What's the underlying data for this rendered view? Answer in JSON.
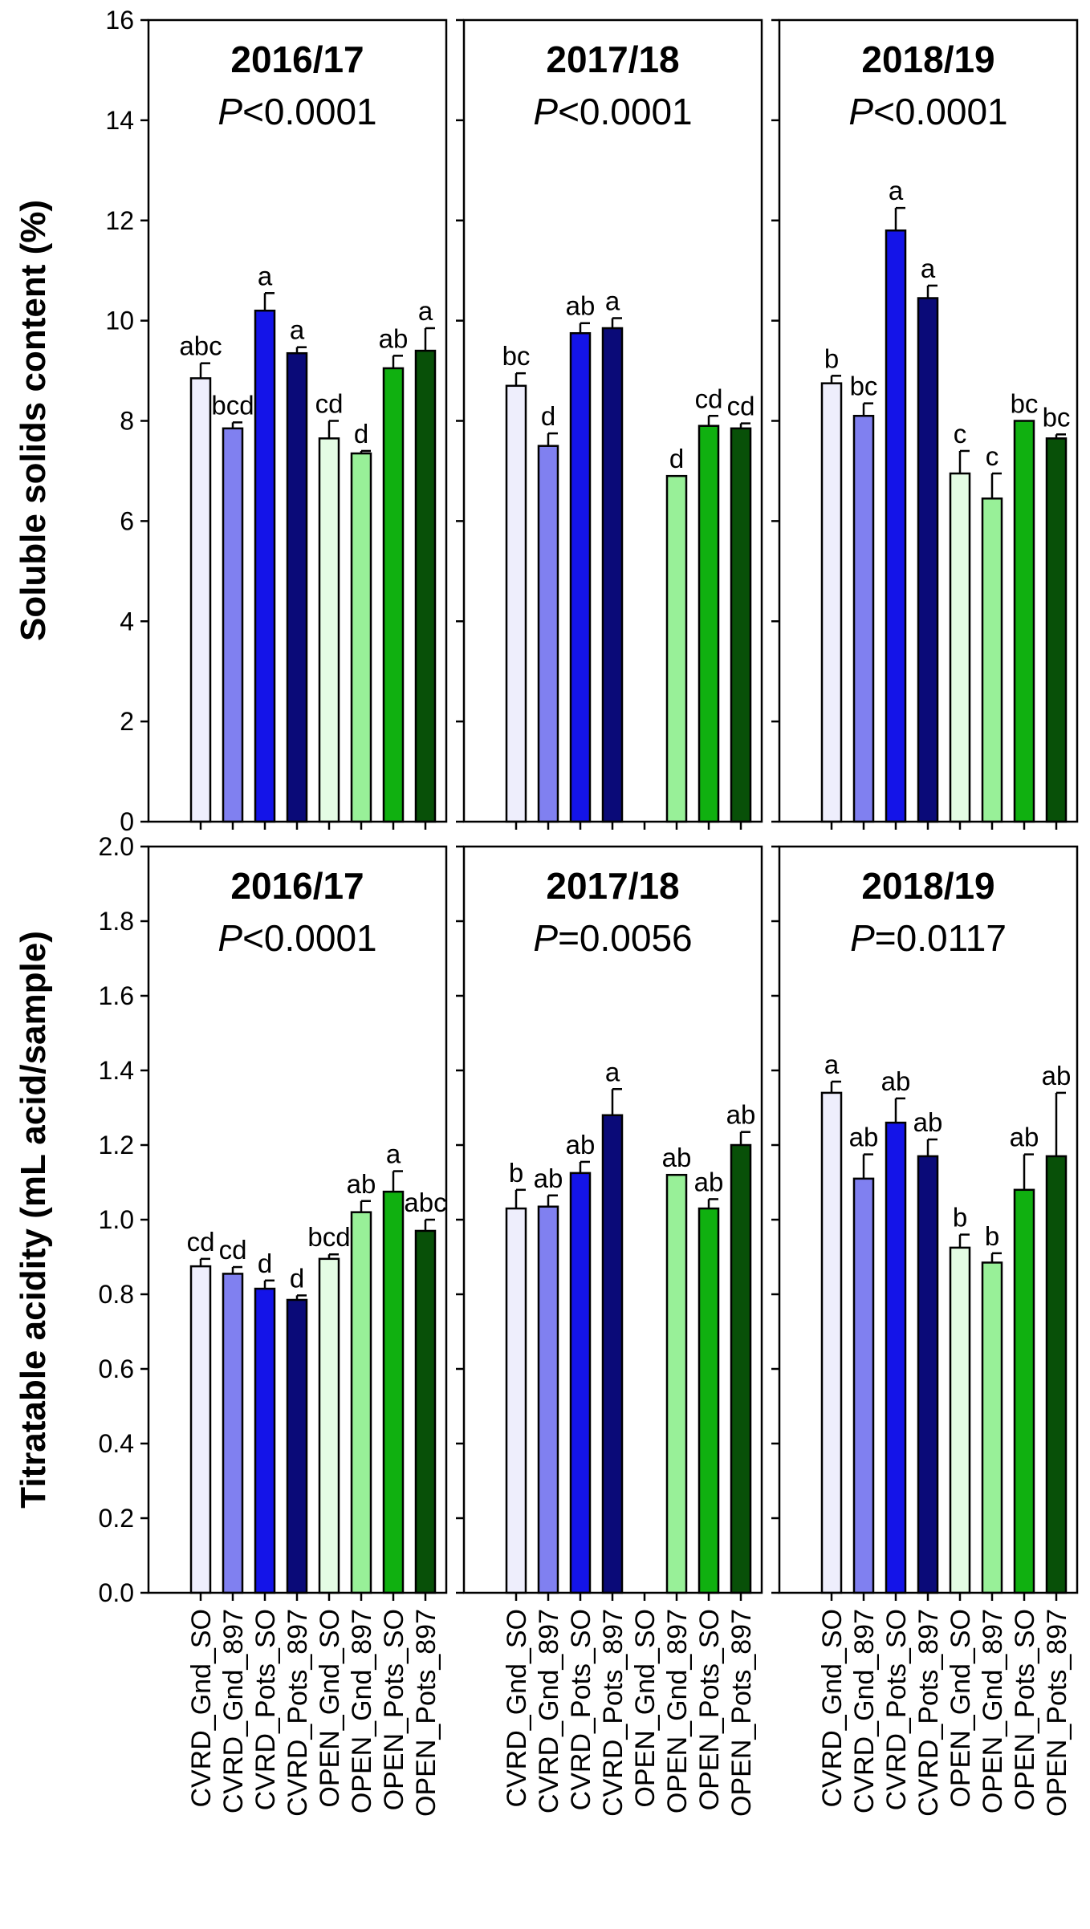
{
  "colors": {
    "CVRD_Gnd_SO": "#eeeefc",
    "CVRD_Gnd_897": "#8080f0",
    "CVRD_Pots_SO": "#1414e8",
    "CVRD_Pots_897": "#0a0a78",
    "OPEN_Gnd_SO": "#e4fce4",
    "OPEN_Gnd_897": "#98f098",
    "OPEN_Pots_SO": "#10b010",
    "OPEN_Pots_897": "#085008"
  },
  "chart_data": [
    {
      "type": "bar",
      "id": "ssc-2016",
      "row": "top",
      "title": "2016/17",
      "p_prefix": "P",
      "p_rest": "<0.0001",
      "ylabel": "Soluble solids content (%)",
      "ylim": [
        0,
        16
      ],
      "yticks": [
        "0",
        "2",
        "4",
        "6",
        "8",
        "10",
        "12",
        "14",
        "16"
      ],
      "categories": [
        "CVRD_Gnd_SO",
        "CVRD_Gnd_897",
        "CVRD_Pots_SO",
        "CVRD_Pots_897",
        "OPEN_Gnd_SO",
        "OPEN_Gnd_897",
        "OPEN_Pots_SO",
        "OPEN_Pots_897"
      ],
      "values": [
        8.85,
        7.85,
        10.2,
        9.35,
        7.65,
        7.35,
        9.05,
        9.4
      ],
      "errors": [
        0.3,
        0.12,
        0.35,
        0.12,
        0.35,
        0.05,
        0.25,
        0.45
      ],
      "letters": [
        "abc",
        "bcd",
        "a",
        "a",
        "cd",
        "d",
        "ab",
        "a"
      ]
    },
    {
      "type": "bar",
      "id": "ssc-2017",
      "row": "top",
      "title": "2017/18",
      "p_prefix": "P",
      "p_rest": "<0.0001",
      "ylim": [
        0,
        16
      ],
      "categories": [
        "CVRD_Gnd_SO",
        "CVRD_Gnd_897",
        "CVRD_Pots_SO",
        "CVRD_Pots_897",
        "OPEN_Gnd_SO",
        "OPEN_Gnd_897",
        "OPEN_Pots_SO",
        "OPEN_Pots_897"
      ],
      "values": [
        8.7,
        7.5,
        9.75,
        9.85,
        null,
        6.9,
        7.9,
        7.85
      ],
      "errors": [
        0.25,
        0.25,
        0.2,
        0.2,
        null,
        0.0,
        0.2,
        0.1
      ],
      "letters": [
        "bc",
        "d",
        "ab",
        "a",
        "",
        "d",
        "cd",
        "cd"
      ]
    },
    {
      "type": "bar",
      "id": "ssc-2018",
      "row": "top",
      "title": "2018/19",
      "p_prefix": "P",
      "p_rest": "<0.0001",
      "ylim": [
        0,
        16
      ],
      "categories": [
        "CVRD_Gnd_SO",
        "CVRD_Gnd_897",
        "CVRD_Pots_SO",
        "CVRD_Pots_897",
        "OPEN_Gnd_SO",
        "OPEN_Gnd_897",
        "OPEN_Pots_SO",
        "OPEN_Pots_897"
      ],
      "values": [
        8.75,
        8.1,
        11.8,
        10.45,
        6.95,
        6.45,
        8.0,
        7.65
      ],
      "errors": [
        0.15,
        0.25,
        0.45,
        0.25,
        0.45,
        0.5,
        0.0,
        0.08
      ],
      "letters": [
        "b",
        "bc",
        "a",
        "a",
        "c",
        "c",
        "bc",
        "bc"
      ]
    },
    {
      "type": "bar",
      "id": "ta-2016",
      "row": "bottom",
      "title": "2016/17",
      "p_prefix": "P",
      "p_rest": "<0.0001",
      "ylabel": "Titratable acidity (mL acid/sample)",
      "ylim": [
        0,
        2.0
      ],
      "yticks": [
        "0.0",
        "0.2",
        "0.4",
        "0.6",
        "0.8",
        "1.0",
        "1.2",
        "1.4",
        "1.6",
        "1.8",
        "2.0"
      ],
      "categories": [
        "CVRD_Gnd_SO",
        "CVRD_Gnd_897",
        "CVRD_Pots_SO",
        "CVRD_Pots_897",
        "OPEN_Gnd_SO",
        "OPEN_Gnd_897",
        "OPEN_Pots_SO",
        "OPEN_Pots_897"
      ],
      "values": [
        0.875,
        0.855,
        0.815,
        0.785,
        0.895,
        1.02,
        1.075,
        0.97
      ],
      "errors": [
        0.02,
        0.018,
        0.022,
        0.012,
        0.012,
        0.03,
        0.055,
        0.03
      ],
      "letters": [
        "cd",
        "cd",
        "d",
        "d",
        "bcd",
        "ab",
        "a",
        "abc"
      ]
    },
    {
      "type": "bar",
      "id": "ta-2017",
      "row": "bottom",
      "title": "2017/18",
      "p_prefix": "P",
      "p_rest": "=0.0056",
      "ylim": [
        0,
        2.0
      ],
      "categories": [
        "CVRD_Gnd_SO",
        "CVRD_Gnd_897",
        "CVRD_Pots_SO",
        "CVRD_Pots_897",
        "OPEN_Gnd_SO",
        "OPEN_Gnd_897",
        "OPEN_Pots_SO",
        "OPEN_Pots_897"
      ],
      "values": [
        1.03,
        1.035,
        1.125,
        1.28,
        null,
        1.12,
        1.03,
        1.2
      ],
      "errors": [
        0.05,
        0.03,
        0.03,
        0.07,
        null,
        0.0,
        0.025,
        0.035
      ],
      "letters": [
        "b",
        "ab",
        "ab",
        "a",
        "",
        "ab",
        "ab",
        "ab"
      ]
    },
    {
      "type": "bar",
      "id": "ta-2018",
      "row": "bottom",
      "title": "2018/19",
      "p_prefix": "P",
      "p_rest": "=0.0117",
      "ylim": [
        0,
        2.0
      ],
      "categories": [
        "CVRD_Gnd_SO",
        "CVRD_Gnd_897",
        "CVRD_Pots_SO",
        "CVRD_Pots_897",
        "OPEN_Gnd_SO",
        "OPEN_Gnd_897",
        "OPEN_Pots_SO",
        "OPEN_Pots_897"
      ],
      "values": [
        1.34,
        1.11,
        1.26,
        1.17,
        0.925,
        0.885,
        1.08,
        1.17
      ],
      "errors": [
        0.03,
        0.065,
        0.065,
        0.045,
        0.035,
        0.025,
        0.095,
        0.17
      ],
      "letters": [
        "a",
        "ab",
        "ab",
        "ab",
        "b",
        "b",
        "ab",
        "ab"
      ]
    }
  ]
}
